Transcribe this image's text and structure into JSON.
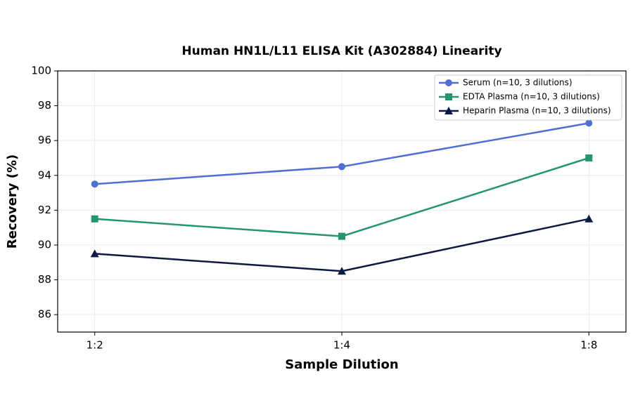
{
  "chart_data": {
    "type": "line",
    "title": "Human HN1L/L11 ELISA Kit (A302884) Linearity",
    "x_label": "Sample Dilution",
    "y_label": "Recovery (%)",
    "categories": [
      "1:2",
      "1:4",
      "1:8"
    ],
    "series": [
      {
        "name": "Serum (n=10, 3 dilutions)",
        "color": "#4f6fd4",
        "marker": "circle",
        "values": [
          93.5,
          94.5,
          97
        ]
      },
      {
        "name": "EDTA Plasma (n=10, 3 dilutions)",
        "color": "#24966d",
        "marker": "square",
        "values": [
          91.5,
          90.5,
          95
        ]
      },
      {
        "name": "Heparin Plasma (n=10, 3 dilutions)",
        "color": "#0d1a44",
        "marker": "triangle",
        "values": [
          89.5,
          88.5,
          91.5
        ]
      }
    ],
    "ylim": [
      85,
      100
    ],
    "yticks": [
      86,
      88,
      90,
      92,
      94,
      96,
      98,
      100
    ],
    "grid": true,
    "legend": "upper right"
  }
}
